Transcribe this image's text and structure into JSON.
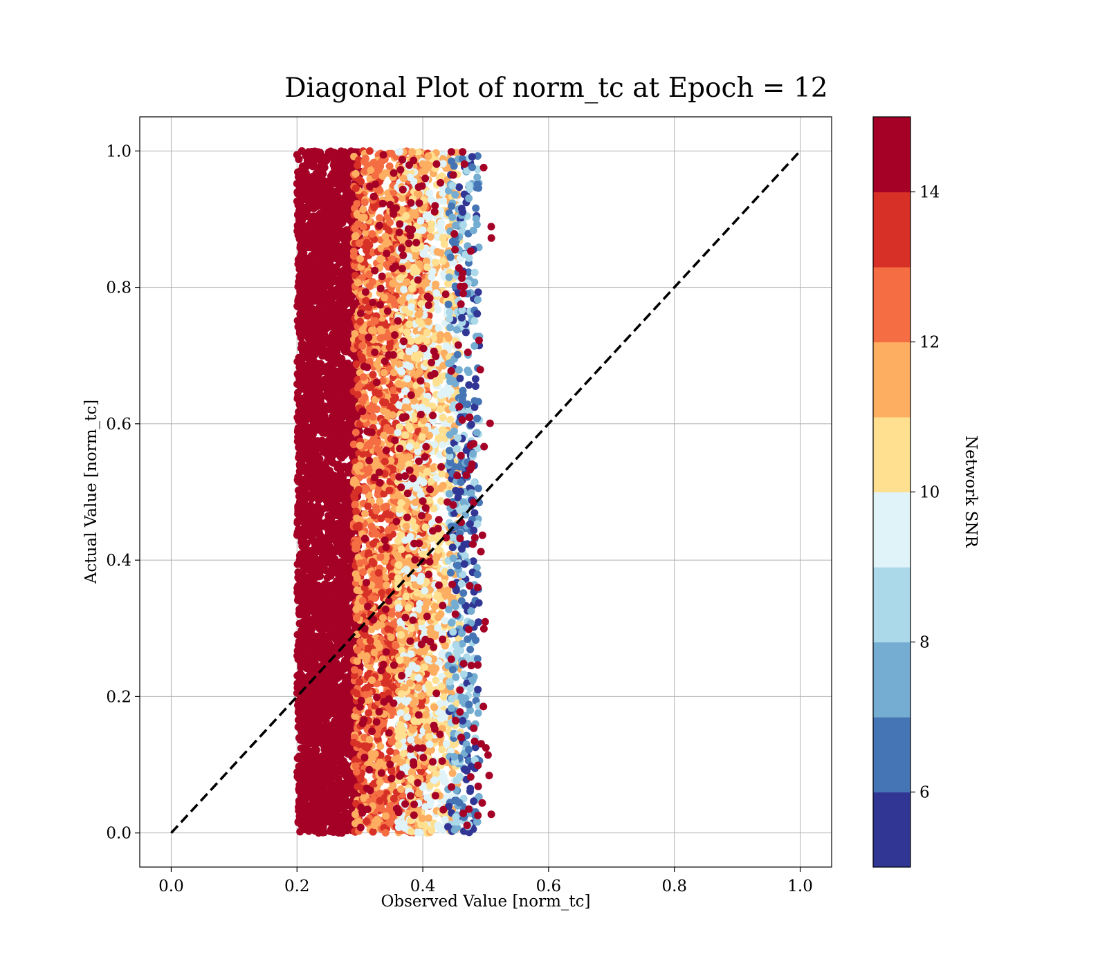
{
  "chart_data": {
    "type": "scatter",
    "title": "Diagonal Plot of norm_tc at Epoch = 12",
    "xlabel": "Observed Value [norm_tc]",
    "ylabel": "Actual Value [norm_tc]",
    "xlim": [
      -0.05,
      1.05
    ],
    "ylim": [
      -0.05,
      1.05
    ],
    "xticks": [
      "0.0",
      "0.2",
      "0.4",
      "0.6",
      "0.8",
      "1.0"
    ],
    "yticks": [
      "0.0",
      "0.2",
      "0.4",
      "0.6",
      "0.8",
      "1.0"
    ],
    "grid": true,
    "reference_line": {
      "style": "dashed",
      "color": "#000000",
      "from": [
        0.0,
        0.0
      ],
      "to": [
        1.0,
        1.0
      ]
    },
    "point_clusters": [
      {
        "snr_range": [
          14,
          15
        ],
        "x_range": [
          0.2,
          0.3
        ],
        "y_range": [
          0.0,
          1.0
        ],
        "density": "very high"
      },
      {
        "snr_range": [
          11,
          14
        ],
        "x_range": [
          0.29,
          0.41
        ],
        "y_range": [
          0.0,
          1.0
        ],
        "density": "high"
      },
      {
        "snr_range": [
          9,
          12
        ],
        "x_range": [
          0.36,
          0.46
        ],
        "y_range": [
          0.0,
          1.0
        ],
        "density": "medium"
      },
      {
        "snr_range": [
          5,
          9
        ],
        "x_range": [
          0.44,
          0.49
        ],
        "y_range": [
          0.0,
          1.0
        ],
        "density": "low"
      }
    ],
    "colorbar": {
      "label": "Network SNR",
      "range": [
        5,
        15
      ],
      "ticks": [
        "6",
        "8",
        "10",
        "12",
        "14"
      ],
      "colors": [
        "#313695",
        "#4575b4",
        "#74add1",
        "#abd9e9",
        "#e0f3f8",
        "#fee090",
        "#fdae61",
        "#f46d43",
        "#d73027",
        "#a50026"
      ]
    }
  }
}
